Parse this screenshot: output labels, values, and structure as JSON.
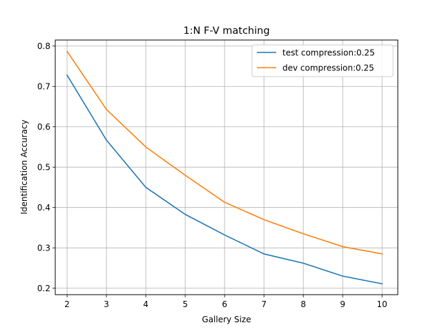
{
  "chart_data": {
    "type": "line",
    "title": "1:N F-V matching",
    "xlabel": "Gallery Size",
    "ylabel": "Identification Accuracy",
    "x": [
      2,
      3,
      4,
      5,
      6,
      7,
      8,
      9,
      10
    ],
    "xlim": [
      1.7,
      10.4
    ],
    "ylim": [
      0.184,
      0.815
    ],
    "xticks": [
      2,
      3,
      4,
      5,
      6,
      7,
      8,
      9,
      10
    ],
    "yticks": [
      0.2,
      0.3,
      0.4,
      0.5,
      0.6,
      0.7,
      0.8
    ],
    "grid": true,
    "legend_position": "top-right",
    "series": [
      {
        "name": "test compression:0.25",
        "color": "#1f77b4",
        "values": [
          0.728,
          0.567,
          0.45,
          0.383,
          0.332,
          0.285,
          0.262,
          0.23,
          0.211
        ]
      },
      {
        "name": "dev compression:0.25",
        "color": "#ff7f0e",
        "values": [
          0.787,
          0.643,
          0.55,
          0.48,
          0.413,
          0.37,
          0.335,
          0.303,
          0.285
        ]
      }
    ]
  }
}
